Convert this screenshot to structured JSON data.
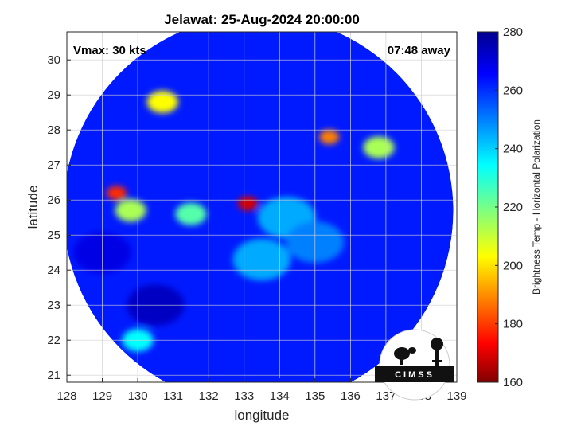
{
  "chart_data": {
    "type": "heatmap",
    "title": "Jelawat: 25-Aug-2024 20:00:00",
    "xlabel": "longitude",
    "ylabel": "latitude",
    "xlim": [
      128,
      139
    ],
    "ylim": [
      20.8,
      30.8
    ],
    "x_ticks": [
      128,
      129,
      130,
      131,
      132,
      133,
      134,
      135,
      136,
      137,
      138,
      139
    ],
    "y_ticks": [
      21,
      22,
      23,
      24,
      25,
      26,
      27,
      28,
      29,
      30
    ],
    "grid": true,
    "annotations": {
      "vmax": "Vmax: 30 kts",
      "time_away": "07:48 away"
    },
    "colorbar": {
      "label": "Brightness Temp - Horizontal Polarization",
      "range": [
        160,
        280
      ],
      "ticks": [
        160,
        180,
        200,
        220,
        240,
        260,
        280
      ],
      "colormap": "jet",
      "placement": "right"
    },
    "swath": {
      "center": [
        133.4,
        25.7
      ],
      "radius_deg": 5.5,
      "background_value": 262
    },
    "features": [
      {
        "lon": 133.1,
        "lat": 25.9,
        "value": 170
      },
      {
        "lon": 129.4,
        "lat": 26.2,
        "value": 180
      },
      {
        "lon": 135.4,
        "lat": 27.8,
        "value": 190
      },
      {
        "lon": 130.7,
        "lat": 28.8,
        "value": 205
      },
      {
        "lon": 129.8,
        "lat": 25.7,
        "value": 215
      },
      {
        "lon": 131.5,
        "lat": 25.6,
        "value": 225
      },
      {
        "lon": 136.8,
        "lat": 27.5,
        "value": 215
      },
      {
        "lon": 130.0,
        "lat": 22.0,
        "value": 235
      },
      {
        "lon": 134.2,
        "lat": 25.5,
        "value": 245
      },
      {
        "lon": 133.5,
        "lat": 24.3,
        "value": 245
      },
      {
        "lon": 135.0,
        "lat": 24.8,
        "value": 250
      },
      {
        "lon": 129.0,
        "lat": 24.5,
        "value": 268
      },
      {
        "lon": 130.5,
        "lat": 23.0,
        "value": 272
      }
    ]
  },
  "logo": {
    "text": "CIMSS"
  }
}
